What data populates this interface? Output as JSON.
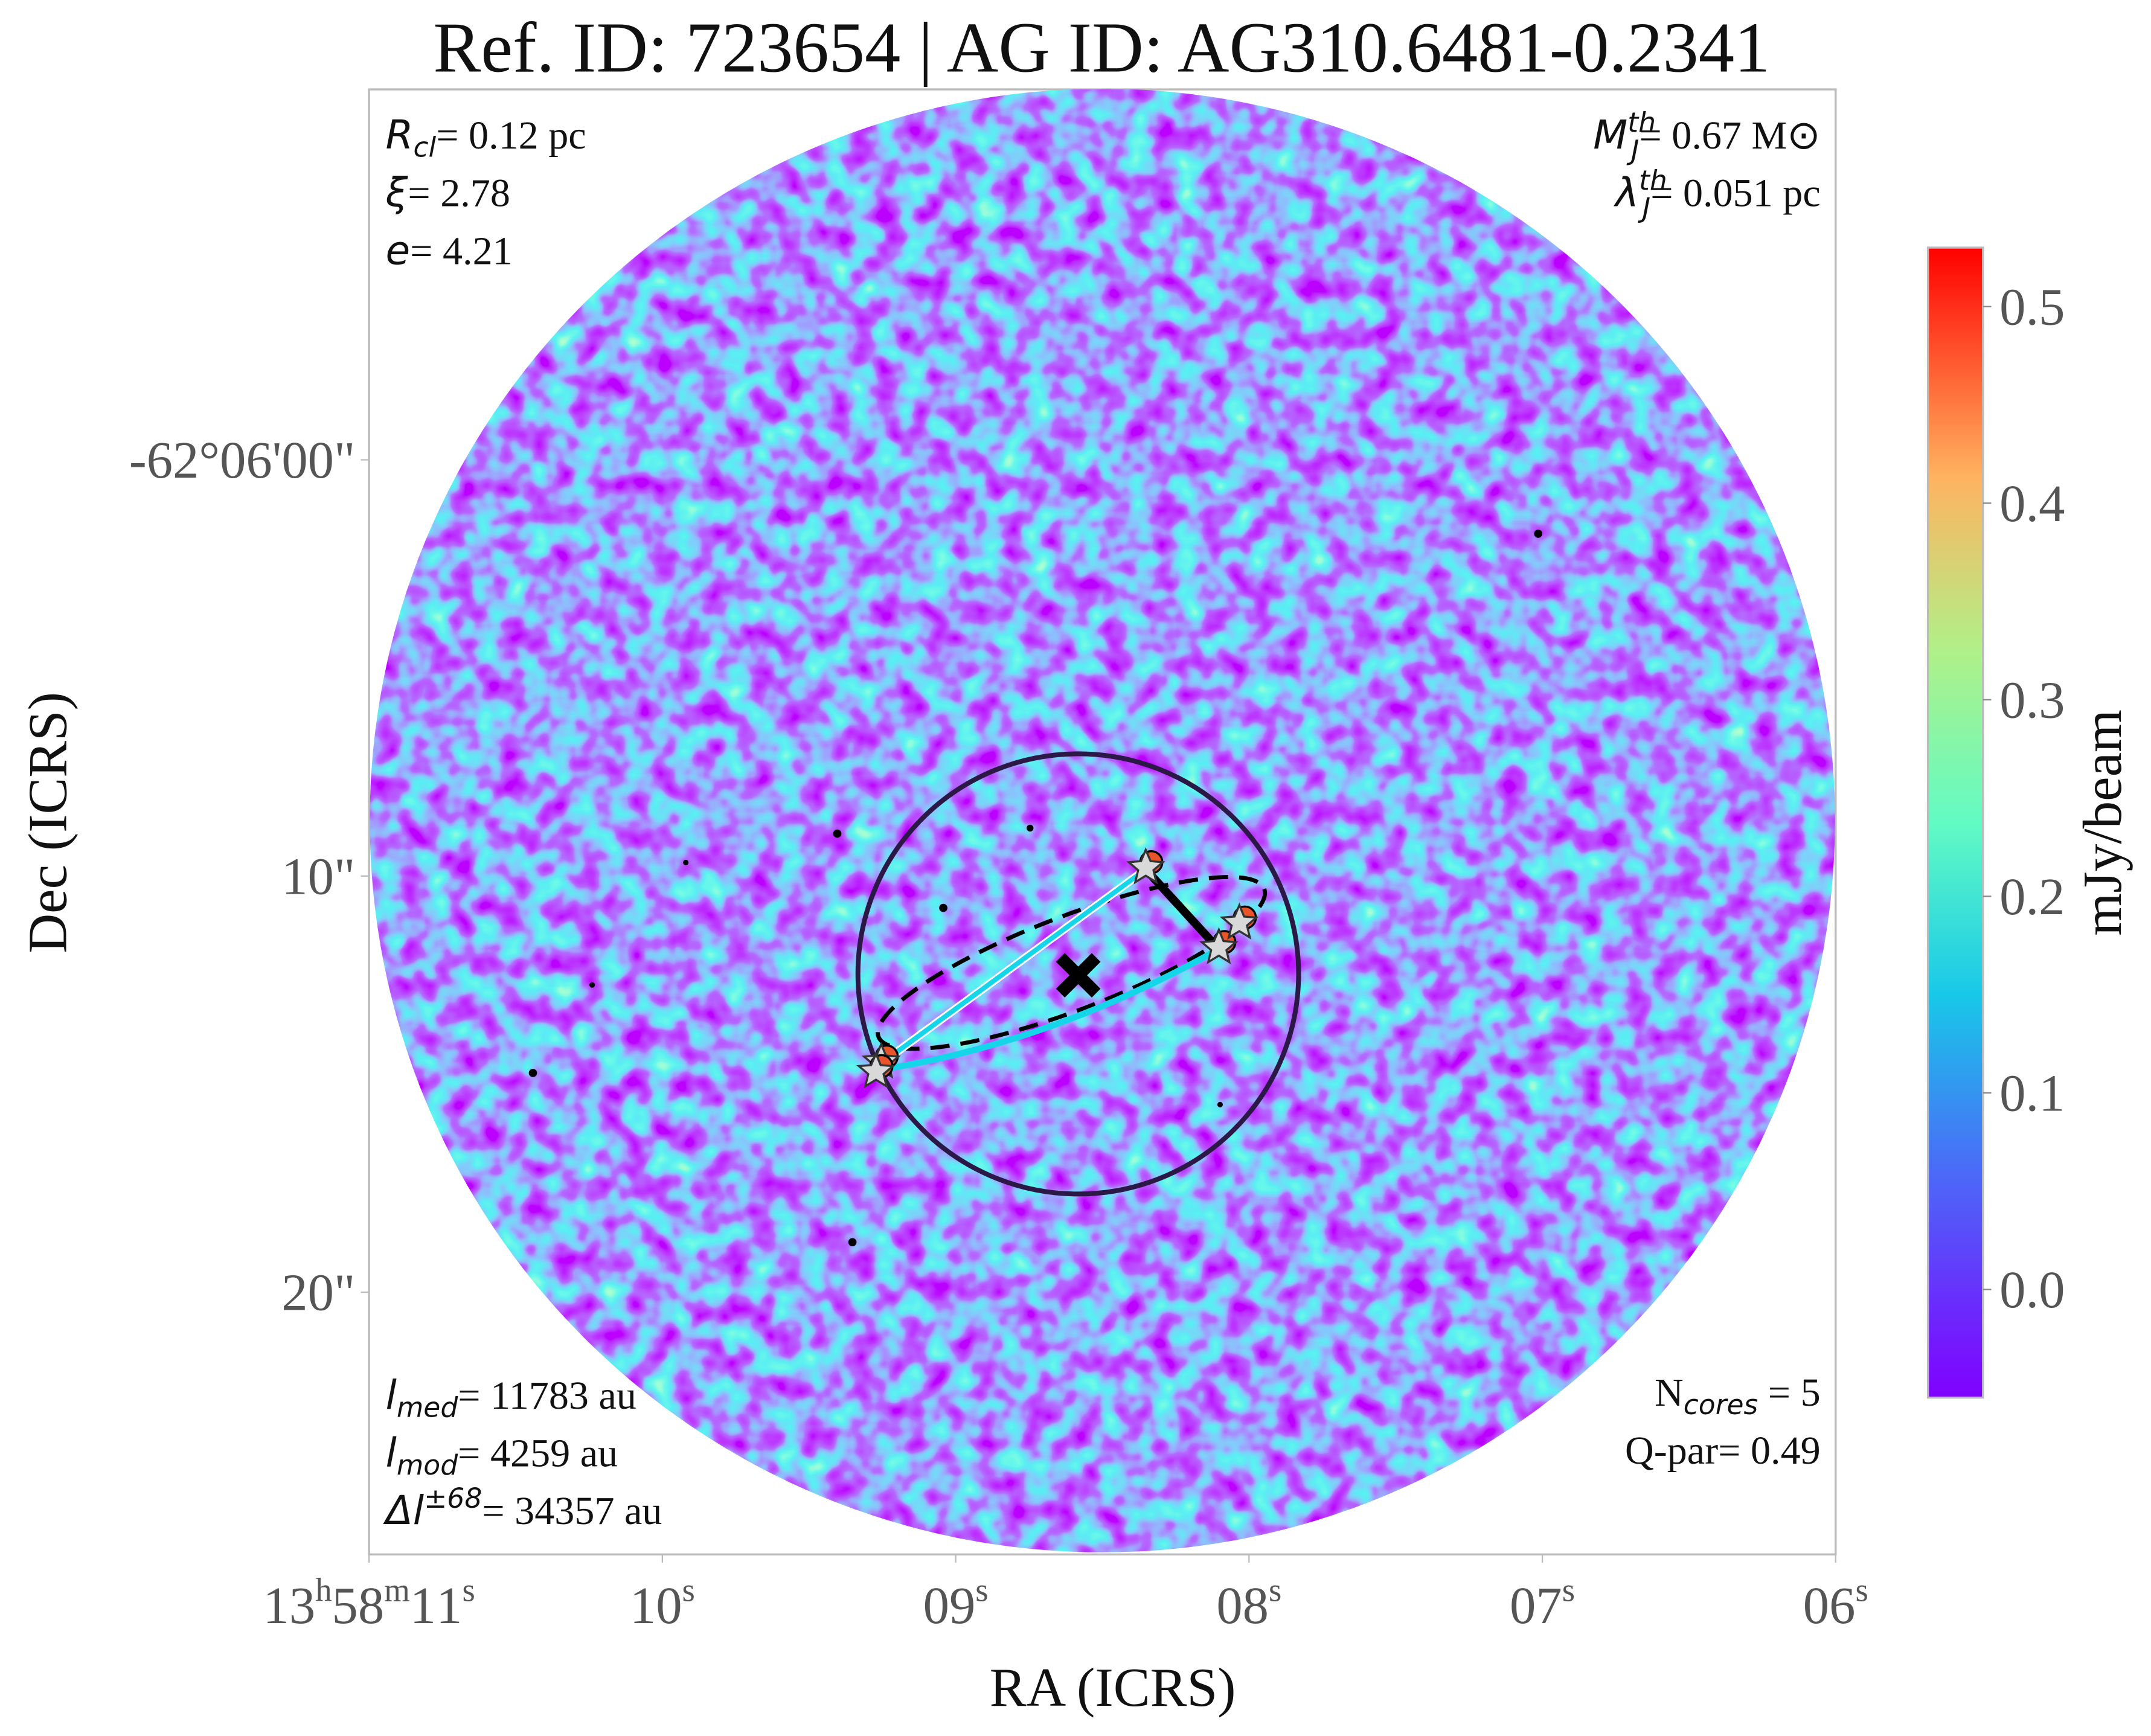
{
  "chart_data": {
    "type": "map",
    "title": "Ref. ID: 723654 | AG ID: AG310.6481-0.2341",
    "xlabel": "RA (ICRS)",
    "ylabel": "Dec (ICRS)",
    "xlim": [
      11,
      6
    ],
    "xticks": [
      {
        "value": 11,
        "label": "13h58m11s"
      },
      {
        "value": 10,
        "label": "10s"
      },
      {
        "value": 9,
        "label": "09s"
      },
      {
        "value": 8,
        "label": "08s"
      },
      {
        "value": 7,
        "label": "07s"
      },
      {
        "value": 6,
        "label": "06s"
      }
    ],
    "ylim": [
      -8.9,
      26.3
    ],
    "yticks": [
      {
        "value": 0,
        "label": "-62°06'00\""
      },
      {
        "value": 10,
        "label": "10\""
      },
      {
        "value": 20,
        "label": "20\""
      }
    ],
    "colorbar": {
      "label": "mJy/beam",
      "lim": [
        -0.055,
        0.53
      ],
      "ticks": [
        {
          "value": 0,
          "label": "0.0"
        },
        0.1,
        0.2,
        0.3,
        0.4,
        0.5
      ]
    },
    "points": {
      "x": [
        8.352,
        8.103,
        8.033,
        9.254,
        9.272
      ],
      "y": [
        9.8,
        11.72,
        11.13,
        14.47,
        14.7
      ]
    },
    "annotations": {
      "top_left": [
        {
          "symbol": "R",
          "sub": "cl",
          "text": "= 0.12 pc"
        },
        {
          "symbol": "ξ",
          "text": "= 2.78"
        },
        {
          "symbol": "e",
          "text": "= 4.21"
        }
      ],
      "top_right": [
        {
          "symbol": "M",
          "sub": "J",
          "sup": "th",
          "text": "= 0.67 M⊙"
        },
        {
          "symbol": "λ",
          "sub": "J",
          "sup": "th",
          "text": "= 0.051 pc"
        }
      ],
      "bottom_left": [
        {
          "symbol": "l",
          "sub": "med",
          "text": "= 11783 au"
        },
        {
          "symbol": "l",
          "sub": "mod",
          "text": "= 4259 au"
        },
        {
          "symbol": "Δl",
          "sup": "±68",
          "text": "= 34357 au"
        }
      ],
      "bottom_right": [
        {
          "symbol": "N",
          "sub": "cores",
          "text": " = 5"
        },
        {
          "symbol": "Q-par",
          "text": "= 0.49"
        }
      ]
    }
  }
}
